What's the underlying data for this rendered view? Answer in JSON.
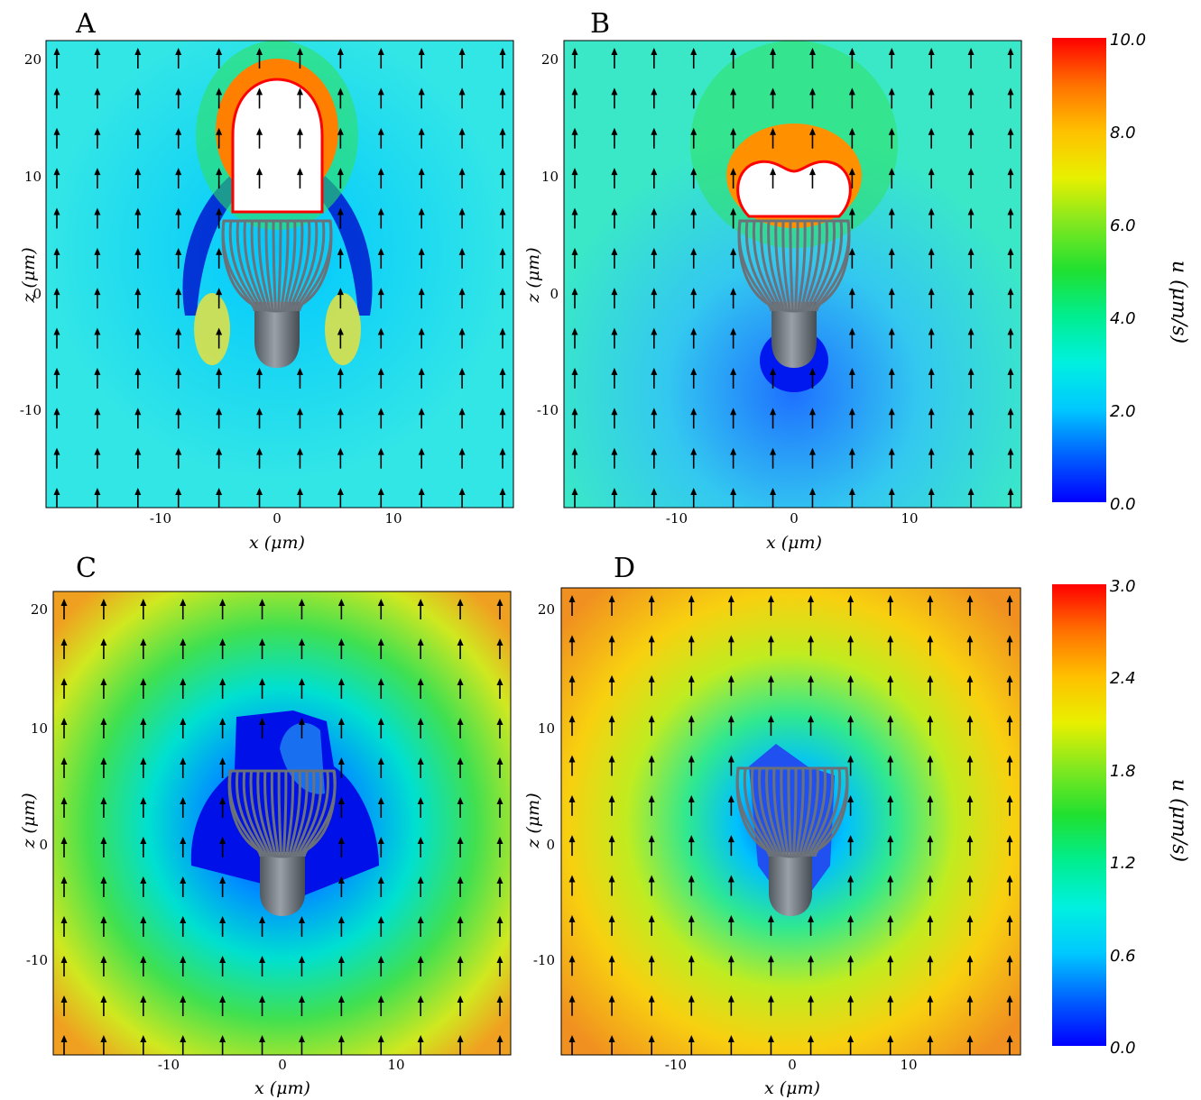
{
  "chart_data": [
    {
      "type": "heatmap",
      "panel_label": "A",
      "xlabel": "x (μm)",
      "ylabel": "z (μm)",
      "xlim": [
        -20,
        19.5
      ],
      "ylim": [
        -18,
        22
      ],
      "x_ticks": [
        -10,
        0,
        10
      ],
      "y_ticks": [
        -10,
        0,
        10,
        20
      ],
      "colorbar": {
        "label": "u (μm/s)",
        "range": [
          0.0,
          10.0
        ],
        "tick_labels": [
          "0.0",
          "2.0",
          "4.0",
          "6.0",
          "8.0",
          "10.0"
        ]
      },
      "field": {
        "base_level": 2.3,
        "background_color": "#33e6e6",
        "high_region": "white region above organism (u > 10)",
        "low_region": "blue crescents beside organism"
      },
      "flow_direction": "upward"
    },
    {
      "type": "heatmap",
      "panel_label": "B",
      "xlabel": "x (μm)",
      "ylabel": "z (μm)",
      "xlim": [
        -20,
        19.5
      ],
      "ylim": [
        -18,
        22
      ],
      "x_ticks": [
        -10,
        0,
        10
      ],
      "y_ticks": [
        -10,
        0,
        10,
        20
      ],
      "colorbar": {
        "label": "u (μm/s)",
        "range": [
          0.0,
          10.0
        ],
        "tick_labels": [
          "0.0",
          "2.0",
          "4.0",
          "6.0",
          "8.0",
          "10.0"
        ]
      },
      "field": {
        "base_level": 3.3,
        "background_color": "#3ae8c8",
        "high_region": "white region above organism (u > 10)",
        "low_region": "blue wake below organism"
      },
      "flow_direction": "upward"
    },
    {
      "type": "heatmap",
      "panel_label": "C",
      "xlabel": "x (μm)",
      "ylabel": "z (μm)",
      "xlim": [
        -20,
        19.5
      ],
      "ylim": [
        -18,
        22
      ],
      "x_ticks": [
        -10,
        0,
        10
      ],
      "y_ticks": [
        -10,
        0,
        10,
        20
      ],
      "colorbar": {
        "label": "u (μm/s)",
        "range": [
          0.0,
          3.0
        ],
        "tick_labels": [
          "0.0",
          "0.6",
          "1.2",
          "1.8",
          "2.4",
          "3.0"
        ]
      },
      "field": {
        "base_level": 1.8,
        "background_color": "#c8e628",
        "high_region": "orange at lower corners",
        "low_region": "dark blue around organism (u ≈ 0)"
      },
      "flow_direction": "upward"
    },
    {
      "type": "heatmap",
      "panel_label": "D",
      "xlabel": "x (μm)",
      "ylabel": "z (μm)",
      "xlim": [
        -20,
        19.5
      ],
      "ylim": [
        -18,
        22
      ],
      "x_ticks": [
        -10,
        0,
        10
      ],
      "y_ticks": [
        -10,
        0,
        10,
        20
      ],
      "colorbar": {
        "label": "u (μm/s)",
        "range": [
          0.0,
          3.0
        ],
        "tick_labels": [
          "0.0",
          "0.6",
          "1.2",
          "1.8",
          "2.4",
          "3.0"
        ]
      },
      "field": {
        "base_level": 2.2,
        "background_color": "#f2e020",
        "high_region": "orange at left and right edges",
        "low_region": "blue ring around organism"
      },
      "flow_direction": "upward"
    }
  ]
}
